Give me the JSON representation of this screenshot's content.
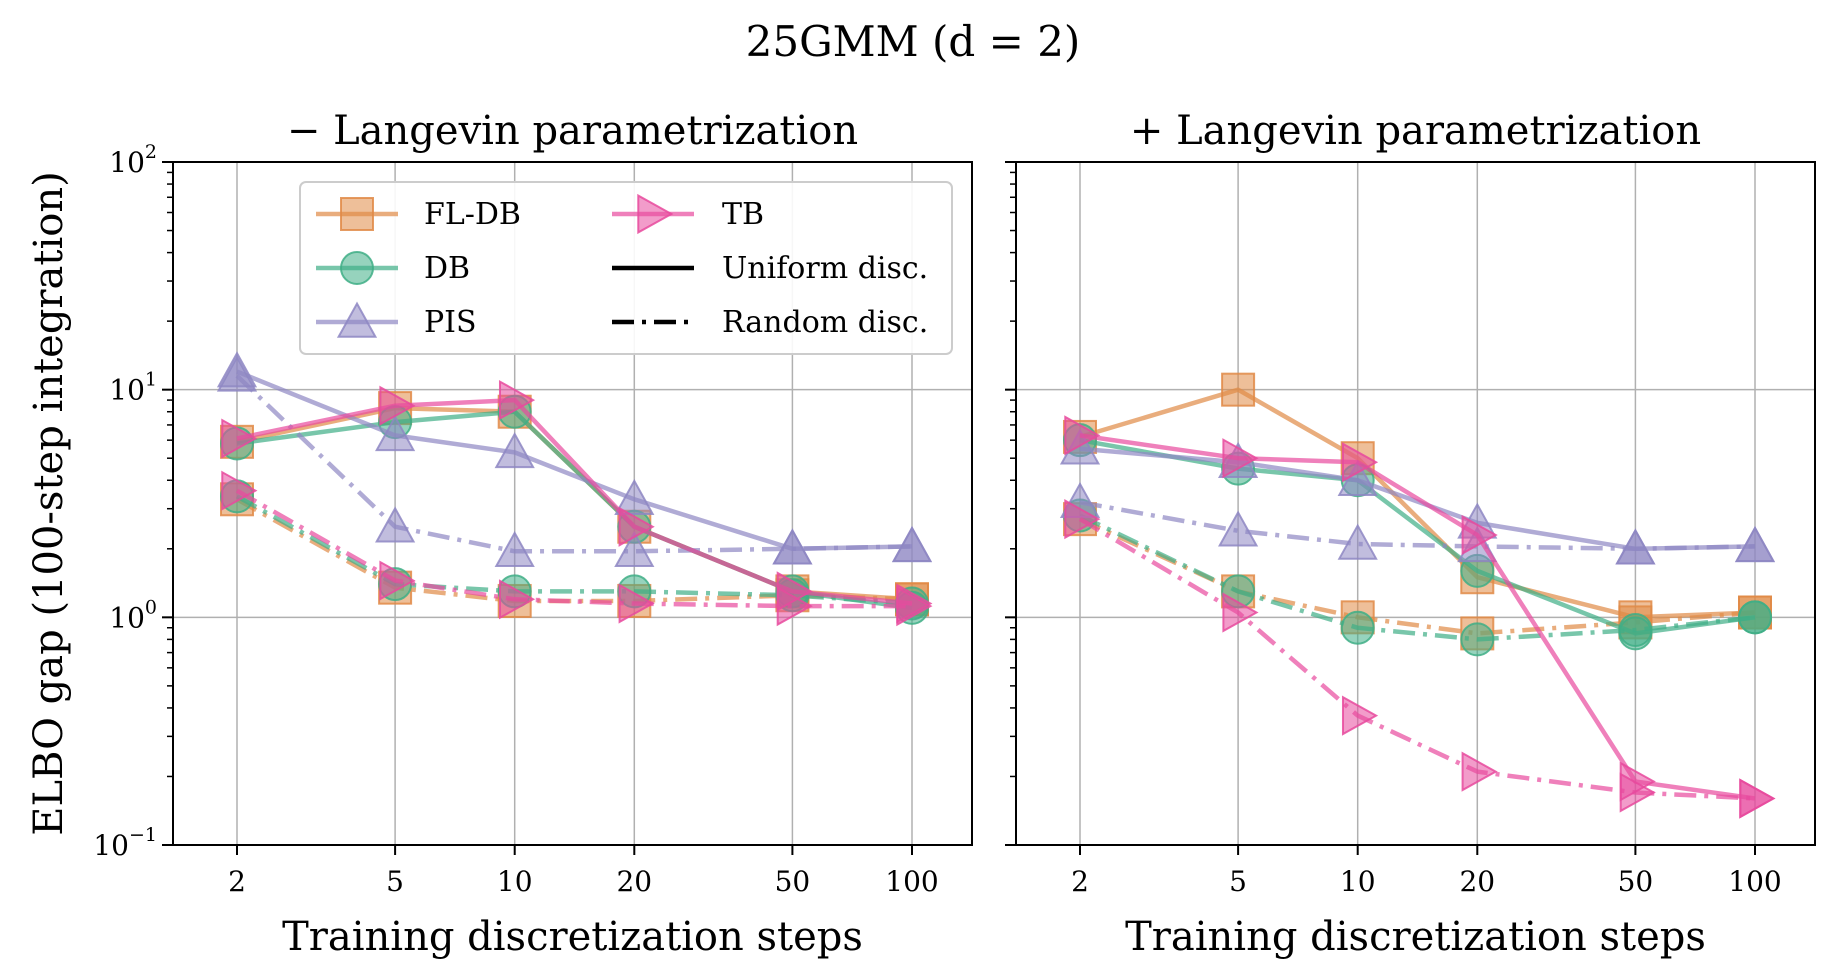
{
  "figure_title": "25GMM (d = 2)",
  "chart_data": [
    {
      "type": "line",
      "title": "− Langevin parametrization",
      "xlabel": "Training discretization steps",
      "ylabel": "ELBO gap (100-step integration)",
      "x_scale": "log",
      "y_scale": "log",
      "x": [
        2,
        5,
        10,
        20,
        50,
        100
      ],
      "x_tick_labels": [
        "2",
        "5",
        "10",
        "20",
        "50",
        "100"
      ],
      "ylim": [
        0.1,
        100
      ],
      "y_tick_labels": [
        "10⁻¹",
        "10⁰",
        "10¹",
        "10²"
      ],
      "grid": true,
      "legend_position": "upper-right",
      "series": [
        {
          "name": "FL-DB",
          "discretization": "Uniform disc.",
          "color": "#e08a46",
          "marker": "square",
          "values": [
            5.9,
            8.3,
            8.0,
            2.5,
            1.3,
            1.2
          ]
        },
        {
          "name": "FL-DB",
          "discretization": "Random disc.",
          "color": "#e08a46",
          "marker": "square",
          "values": [
            3.3,
            1.35,
            1.18,
            1.18,
            1.25,
            1.2
          ]
        },
        {
          "name": "DB",
          "discretization": "Uniform disc.",
          "color": "#3fae86",
          "marker": "circle",
          "values": [
            5.8,
            7.2,
            8.0,
            2.5,
            1.3,
            1.1
          ]
        },
        {
          "name": "DB",
          "discretization": "Random disc.",
          "color": "#3fae86",
          "marker": "circle",
          "values": [
            3.4,
            1.4,
            1.3,
            1.3,
            1.25,
            1.15
          ]
        },
        {
          "name": "PIS",
          "discretization": "Uniform disc.",
          "color": "#8e87c3",
          "marker": "triangle-up",
          "values": [
            12.0,
            6.3,
            5.3,
            3.3,
            2.0,
            2.05
          ]
        },
        {
          "name": "PIS",
          "discretization": "Random disc.",
          "color": "#8e87c3",
          "marker": "triangle-up",
          "values": [
            11.5,
            2.5,
            1.95,
            1.95,
            2.0,
            2.05
          ]
        },
        {
          "name": "TB",
          "discretization": "Uniform disc.",
          "color": "#e84a9e",
          "marker": "triangle-right",
          "values": [
            6.1,
            8.5,
            9.0,
            2.5,
            1.3,
            1.15
          ]
        },
        {
          "name": "TB",
          "discretization": "Random disc.",
          "color": "#e84a9e",
          "marker": "triangle-right",
          "values": [
            3.6,
            1.45,
            1.2,
            1.15,
            1.12,
            1.12
          ]
        }
      ]
    },
    {
      "type": "line",
      "title": "+ Langevin parametrization",
      "xlabel": "Training discretization steps",
      "ylabel": "",
      "x_scale": "log",
      "y_scale": "log",
      "x": [
        2,
        5,
        10,
        20,
        50,
        100
      ],
      "x_tick_labels": [
        "2",
        "5",
        "10",
        "20",
        "50",
        "100"
      ],
      "ylim": [
        0.1,
        100
      ],
      "grid": true,
      "series": [
        {
          "name": "FL-DB",
          "discretization": "Uniform disc.",
          "color": "#e08a46",
          "marker": "square",
          "values": [
            6.2,
            10.0,
            5.0,
            1.5,
            1.0,
            1.05
          ]
        },
        {
          "name": "FL-DB",
          "discretization": "Random disc.",
          "color": "#e08a46",
          "marker": "square",
          "values": [
            2.7,
            1.3,
            1.0,
            0.85,
            0.95,
            1.05
          ]
        },
        {
          "name": "DB",
          "discretization": "Uniform disc.",
          "color": "#3fae86",
          "marker": "circle",
          "values": [
            6.0,
            4.5,
            4.0,
            1.6,
            0.85,
            1.0
          ]
        },
        {
          "name": "DB",
          "discretization": "Random disc.",
          "color": "#3fae86",
          "marker": "circle",
          "values": [
            2.8,
            1.3,
            0.9,
            0.8,
            0.88,
            1.0
          ]
        },
        {
          "name": "PIS",
          "discretization": "Uniform disc.",
          "color": "#8e87c3",
          "marker": "triangle-up",
          "values": [
            5.5,
            4.8,
            4.0,
            2.6,
            2.0,
            2.05
          ]
        },
        {
          "name": "PIS",
          "discretization": "Random disc.",
          "color": "#8e87c3",
          "marker": "triangle-up",
          "values": [
            3.2,
            2.4,
            2.1,
            2.05,
            2.0,
            2.05
          ]
        },
        {
          "name": "TB",
          "discretization": "Uniform disc.",
          "color": "#e84a9e",
          "marker": "triangle-right",
          "values": [
            6.3,
            5.0,
            4.8,
            2.3,
            0.19,
            0.16
          ]
        },
        {
          "name": "TB",
          "discretization": "Random disc.",
          "color": "#e84a9e",
          "marker": "triangle-right",
          "values": [
            2.7,
            1.05,
            0.37,
            0.21,
            0.17,
            0.16
          ]
        }
      ]
    }
  ],
  "legend": {
    "entries": [
      {
        "label": "FL-DB",
        "kind": "method",
        "color": "#e08a46",
        "marker": "square"
      },
      {
        "label": "DB",
        "kind": "method",
        "color": "#3fae86",
        "marker": "circle"
      },
      {
        "label": "PIS",
        "kind": "method",
        "color": "#8e87c3",
        "marker": "triangle-up"
      },
      {
        "label": "TB",
        "kind": "method",
        "color": "#e84a9e",
        "marker": "triangle-right"
      },
      {
        "label": "Uniform disc.",
        "kind": "style",
        "linestyle": "solid"
      },
      {
        "label": "Random disc.",
        "kind": "style",
        "linestyle": "dashdot"
      }
    ]
  }
}
